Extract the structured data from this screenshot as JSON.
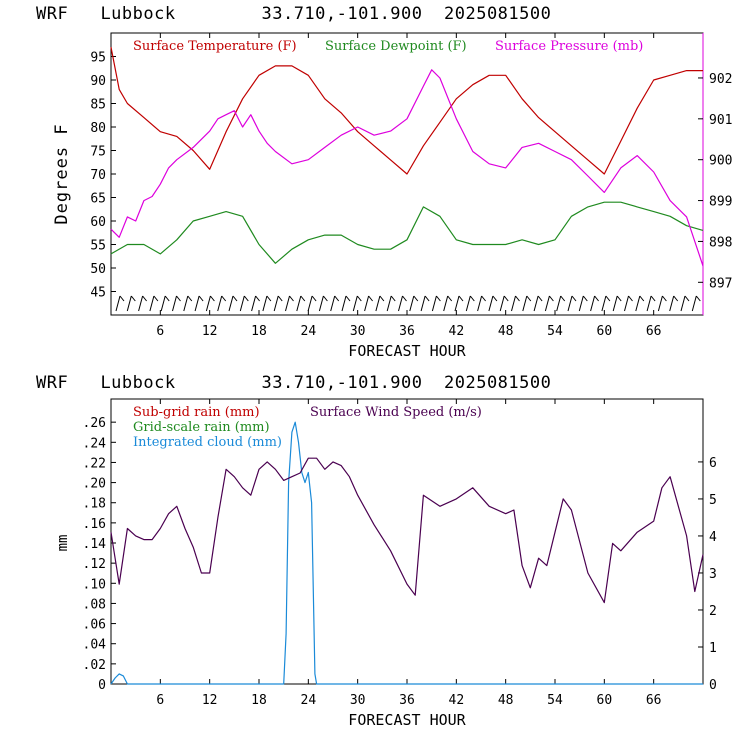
{
  "panels": [
    {
      "header": {
        "model": "WRF",
        "site": "Lubbock",
        "coords": "33.710,-101.900",
        "run": "2025081500"
      },
      "xlabel": "FORECAST HOUR",
      "ylabel": "Degrees F",
      "legend": [
        {
          "label": "Surface Temperature (F)",
          "color": "#c00000"
        },
        {
          "label": "Surface Dewpoint (F)",
          "color": "#1f8a1f"
        },
        {
          "label": "Surface Pressure (mb)",
          "color": "#dd00dd"
        }
      ]
    },
    {
      "header": {
        "model": "WRF",
        "site": "Lubbock",
        "coords": "33.710,-101.900",
        "run": "2025081500"
      },
      "xlabel": "FORECAST HOUR",
      "ylabel": "mm",
      "legend": [
        {
          "label": "Sub-grid rain (mm)",
          "color": "#c00000"
        },
        {
          "label": "Grid-scale rain (mm)",
          "color": "#1f8a1f"
        },
        {
          "label": "Integrated cloud (mm)",
          "color": "#1a8ad8"
        },
        {
          "label": "Surface Wind Speed (m/s)",
          "color": "#4a0050"
        }
      ]
    }
  ],
  "chart_data": [
    {
      "type": "line",
      "xlabel": "FORECAST HOUR",
      "ylabel": "Degrees F",
      "x_ticks": [
        6,
        12,
        18,
        24,
        30,
        36,
        42,
        48,
        54,
        60,
        66
      ],
      "xlim": [
        0,
        72
      ],
      "y_ticks_left": [
        45,
        50,
        55,
        60,
        65,
        70,
        75,
        80,
        85,
        90,
        95
      ],
      "ylim_left": [
        40,
        100
      ],
      "y_ticks_right": [
        897,
        898,
        899,
        900,
        901,
        902
      ],
      "ylim_right": [
        896.2,
        903.1
      ],
      "grid": false,
      "series": [
        {
          "name": "Surface Temperature (F)",
          "axis": "left",
          "color": "#c00000",
          "x": [
            0,
            1,
            2,
            4,
            6,
            8,
            10,
            12,
            14,
            16,
            18,
            20,
            22,
            24,
            26,
            28,
            30,
            32,
            34,
            36,
            38,
            40,
            42,
            44,
            46,
            48,
            50,
            52,
            54,
            56,
            58,
            60,
            62,
            64,
            66,
            68,
            70,
            72
          ],
          "y": [
            97,
            88,
            85,
            82,
            79,
            78,
            75,
            71,
            79,
            86,
            91,
            93,
            93,
            91,
            86,
            83,
            79,
            76,
            73,
            70,
            76,
            81,
            86,
            89,
            91,
            91,
            86,
            82,
            79,
            76,
            73,
            70,
            77,
            84,
            90,
            91,
            92,
            92
          ]
        },
        {
          "name": "Surface Dewpoint (F)",
          "axis": "left",
          "color": "#1f8a1f",
          "x": [
            0,
            2,
            4,
            6,
            8,
            10,
            12,
            14,
            16,
            18,
            20,
            22,
            24,
            26,
            28,
            30,
            32,
            34,
            36,
            38,
            40,
            42,
            44,
            46,
            48,
            50,
            52,
            54,
            56,
            58,
            60,
            62,
            64,
            66,
            68,
            70,
            72
          ],
          "y": [
            53,
            55,
            55,
            53,
            56,
            60,
            61,
            62,
            61,
            55,
            51,
            54,
            56,
            57,
            57,
            55,
            54,
            54,
            56,
            63,
            61,
            56,
            55,
            55,
            55,
            56,
            55,
            56,
            61,
            63,
            64,
            64,
            63,
            62,
            61,
            59,
            58
          ]
        },
        {
          "name": "Surface Pressure (mb)",
          "axis": "right",
          "color": "#dd00dd",
          "x": [
            0,
            1,
            2,
            3,
            4,
            5,
            6,
            7,
            8,
            10,
            12,
            13,
            14,
            15,
            16,
            17,
            18,
            19,
            20,
            22,
            24,
            26,
            28,
            30,
            32,
            34,
            36,
            38,
            39,
            40,
            42,
            44,
            46,
            48,
            50,
            52,
            54,
            56,
            58,
            60,
            62,
            64,
            66,
            68,
            70,
            72
          ],
          "y": [
            898.3,
            898.1,
            898.6,
            898.5,
            899.0,
            899.1,
            899.4,
            899.8,
            900.0,
            900.3,
            900.7,
            901.0,
            901.1,
            901.2,
            900.8,
            901.1,
            900.7,
            900.4,
            900.2,
            899.9,
            900.0,
            900.3,
            900.6,
            900.8,
            900.6,
            900.7,
            901.0,
            901.8,
            902.2,
            902.0,
            901.0,
            900.2,
            899.9,
            899.8,
            900.3,
            900.4,
            900.2,
            900.0,
            899.6,
            899.2,
            899.8,
            900.1,
            899.7,
            899.0,
            898.6,
            897.4
          ]
        }
      ]
    },
    {
      "type": "line",
      "xlabel": "FORECAST HOUR",
      "ylabel": "mm",
      "x_ticks": [
        6,
        12,
        18,
        24,
        30,
        36,
        42,
        48,
        54,
        60,
        66
      ],
      "xlim": [
        0,
        72
      ],
      "y_ticks_left": [
        0,
        0.02,
        0.04,
        0.06,
        0.08,
        0.1,
        0.12,
        0.14,
        0.16,
        0.18,
        0.2,
        0.22,
        0.24,
        0.26
      ],
      "y_tick_labels_left": [
        "0",
        ".02",
        ".04",
        ".06",
        ".08",
        ".10",
        ".12",
        ".14",
        ".16",
        ".18",
        ".20",
        ".22",
        ".24",
        ".26"
      ],
      "ylim_left": [
        0,
        0.283
      ],
      "y_ticks_right": [
        0,
        1,
        2,
        3,
        4,
        5,
        6
      ],
      "ylim_right": [
        0,
        7.7
      ],
      "grid": false,
      "series": [
        {
          "name": "Integrated cloud (mm)",
          "axis": "left",
          "color": "#1a8ad8",
          "x": [
            0,
            0.5,
            1,
            1.5,
            2,
            3,
            21,
            21.3,
            21.6,
            22,
            22.4,
            22.8,
            23.2,
            23.6,
            24,
            24.4,
            24.8,
            25,
            26,
            72
          ],
          "y": [
            0,
            0.006,
            0.01,
            0.008,
            0,
            0,
            0,
            0.05,
            0.2,
            0.25,
            0.26,
            0.24,
            0.21,
            0.2,
            0.21,
            0.18,
            0.01,
            0,
            0,
            0
          ]
        },
        {
          "name": "Surface Wind Speed (m/s)",
          "axis": "right",
          "color": "#4a0050",
          "x": [
            0,
            0.5,
            1,
            2,
            3,
            4,
            5,
            6,
            7,
            8,
            9,
            10,
            11,
            12,
            13,
            14,
            15,
            16,
            17,
            18,
            19,
            20,
            21,
            22,
            23,
            24,
            25,
            26,
            27,
            28,
            29,
            30,
            32,
            34,
            36,
            37,
            38,
            40,
            42,
            44,
            46,
            48,
            49,
            50,
            51,
            52,
            53,
            54,
            55,
            56,
            58,
            60,
            61,
            62,
            64,
            66,
            67,
            68,
            70,
            71,
            72
          ],
          "y": [
            4.1,
            3.4,
            2.7,
            4.2,
            4.0,
            3.9,
            3.9,
            4.2,
            4.6,
            4.8,
            4.2,
            3.7,
            3.0,
            3.0,
            4.5,
            5.8,
            5.6,
            5.3,
            5.1,
            5.8,
            6.0,
            5.8,
            5.5,
            5.6,
            5.7,
            6.1,
            6.1,
            5.8,
            6.0,
            5.9,
            5.6,
            5.1,
            4.3,
            3.6,
            2.7,
            2.4,
            5.1,
            4.8,
            5.0,
            5.3,
            4.8,
            4.6,
            4.7,
            3.2,
            2.6,
            3.4,
            3.2,
            4.1,
            5.0,
            4.7,
            3.0,
            2.2,
            3.8,
            3.6,
            4.1,
            4.4,
            5.3,
            5.6,
            4.0,
            2.5,
            3.5
          ]
        }
      ]
    }
  ]
}
